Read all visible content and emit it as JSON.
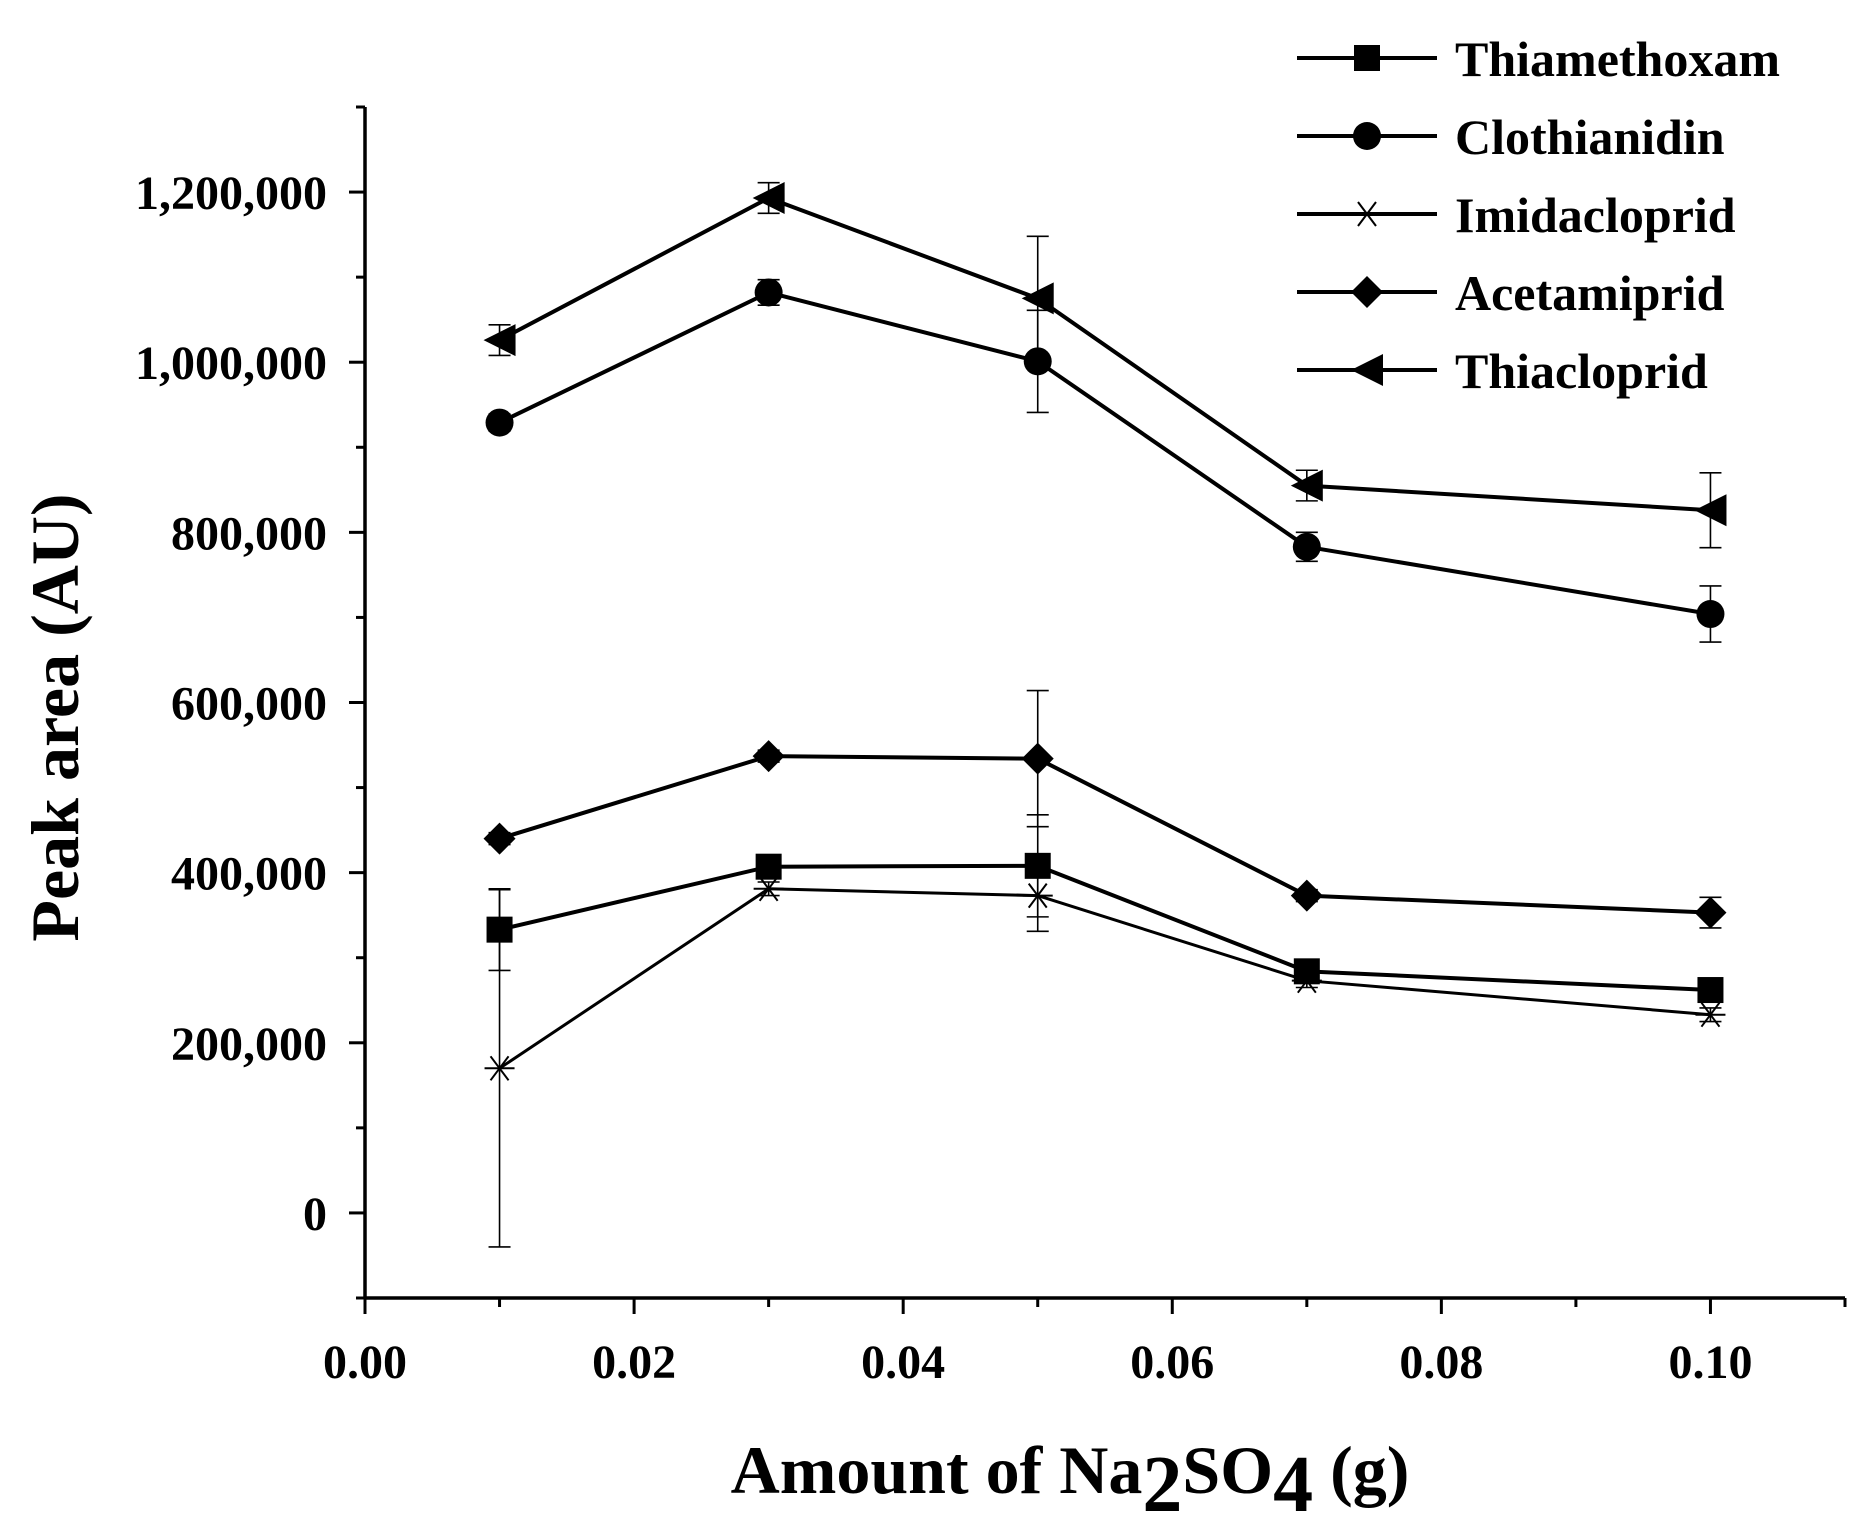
{
  "chart_data": {
    "type": "line",
    "xlabel_parts": [
      {
        "text": "Amount of Na",
        "sub": false
      },
      {
        "text": "2",
        "sub": true
      },
      {
        "text": "SO",
        "sub": false
      },
      {
        "text": "4",
        "sub": true
      },
      {
        "text": " (g)",
        "sub": false
      }
    ],
    "ylabel": "Peak area (AU)",
    "xlim": [
      0.0,
      0.11
    ],
    "ylim": [
      -100000,
      1300000
    ],
    "x_ticks": [
      {
        "value": 0.0,
        "label": "0.00"
      },
      {
        "value": 0.02,
        "label": "0.02"
      },
      {
        "value": 0.04,
        "label": "0.04"
      },
      {
        "value": 0.06,
        "label": "0.06"
      },
      {
        "value": 0.08,
        "label": "0.08"
      },
      {
        "value": 0.1,
        "label": "0.10"
      }
    ],
    "x_minor_ticks": [
      0.01,
      0.03,
      0.05,
      0.07,
      0.09,
      0.11
    ],
    "y_ticks": [
      {
        "value": 0,
        "label": "0"
      },
      {
        "value": 200000,
        "label": "200,000"
      },
      {
        "value": 400000,
        "label": "400,000"
      },
      {
        "value": 600000,
        "label": "600,000"
      },
      {
        "value": 800000,
        "label": "800,000"
      },
      {
        "value": 1000000,
        "label": "1,000,000"
      },
      {
        "value": 1200000,
        "label": "1,200,000"
      }
    ],
    "y_minor_ticks": [
      -100000,
      100000,
      300000,
      500000,
      700000,
      900000,
      1100000,
      1300000
    ],
    "x": [
      0.01,
      0.03,
      0.05,
      0.07,
      0.1
    ],
    "series": [
      {
        "name": "Thiamethoxam",
        "marker": "square",
        "values": [
          333000,
          407000,
          408000,
          284000,
          262000
        ],
        "errors": [
          48000,
          7000,
          60000,
          8000,
          8000
        ]
      },
      {
        "name": "Clothianidin",
        "marker": "circle",
        "values": [
          929000,
          1082000,
          1001000,
          783000,
          704000
        ],
        "errors": [
          10000,
          15000,
          60000,
          17000,
          33000
        ]
      },
      {
        "name": "Imidacloprid",
        "marker": "asterisk",
        "values": [
          170000,
          381000,
          373000,
          273000,
          233000
        ],
        "errors": [
          210000,
          8000,
          42000,
          8000,
          8000
        ]
      },
      {
        "name": "Acetamiprid",
        "marker": "diamond",
        "values": [
          440000,
          537000,
          534000,
          373000,
          353000
        ],
        "errors": [
          7000,
          7000,
          80000,
          7000,
          18000
        ]
      },
      {
        "name": "Thiacloprid",
        "marker": "triangle-left",
        "values": [
          1026000,
          1193000,
          1075000,
          855000,
          826000
        ],
        "errors": [
          18000,
          18000,
          73000,
          18000,
          44000
        ]
      }
    ],
    "legend_position": "top-right",
    "grid": false
  }
}
